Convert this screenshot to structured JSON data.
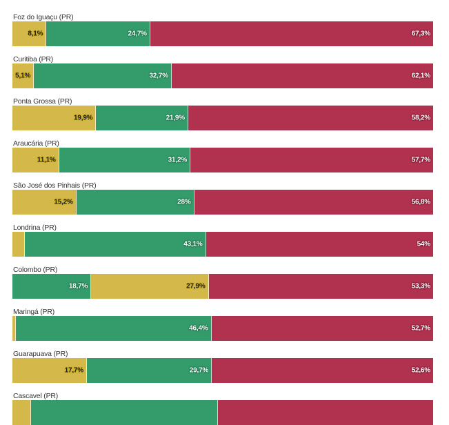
{
  "colors": {
    "yellow": "#d4b94a",
    "green": "#349c6b",
    "red": "#b0324f"
  },
  "chart_data": {
    "type": "bar",
    "orientation": "horizontal",
    "stacked": true,
    "normalized": true,
    "title": "",
    "xlabel": "",
    "ylabel": "",
    "xlim": [
      0,
      100
    ],
    "rows": [
      {
        "name": "Foz do Iguaçu (PR)",
        "segments": [
          {
            "color": "yellow",
            "value": 8.1,
            "label": "8,1%"
          },
          {
            "color": "green",
            "value": 24.7,
            "label": "24,7%"
          },
          {
            "color": "red",
            "value": 67.3,
            "label": "67,3%"
          }
        ]
      },
      {
        "name": "Curitiba (PR)",
        "segments": [
          {
            "color": "yellow",
            "value": 5.1,
            "label": "5,1%"
          },
          {
            "color": "green",
            "value": 32.7,
            "label": "32,7%"
          },
          {
            "color": "red",
            "value": 62.1,
            "label": "62,1%"
          }
        ]
      },
      {
        "name": "Ponta Grossa (PR)",
        "segments": [
          {
            "color": "yellow",
            "value": 19.9,
            "label": "19,9%"
          },
          {
            "color": "green",
            "value": 21.9,
            "label": "21,9%"
          },
          {
            "color": "red",
            "value": 58.2,
            "label": "58,2%"
          }
        ]
      },
      {
        "name": "Araucária (PR)",
        "segments": [
          {
            "color": "yellow",
            "value": 11.1,
            "label": "11,1%"
          },
          {
            "color": "green",
            "value": 31.2,
            "label": "31,2%"
          },
          {
            "color": "red",
            "value": 57.7,
            "label": "57,7%"
          }
        ]
      },
      {
        "name": "São José dos Pinhais (PR)",
        "segments": [
          {
            "color": "yellow",
            "value": 15.2,
            "label": "15,2%"
          },
          {
            "color": "green",
            "value": 28,
            "label": "28%"
          },
          {
            "color": "red",
            "value": 56.8,
            "label": "56,8%"
          }
        ]
      },
      {
        "name": "Londrina (PR)",
        "segments": [
          {
            "color": "yellow",
            "value": 2.9,
            "label": ""
          },
          {
            "color": "green",
            "value": 43.1,
            "label": "43,1%"
          },
          {
            "color": "red",
            "value": 54,
            "label": "54%"
          }
        ]
      },
      {
        "name": "Colombo (PR)",
        "segments": [
          {
            "color": "green",
            "value": 18.7,
            "label": "18,7%"
          },
          {
            "color": "yellow",
            "value": 27.9,
            "label": "27,9%"
          },
          {
            "color": "red",
            "value": 53.3,
            "label": "53,3%"
          }
        ]
      },
      {
        "name": "Maringá (PR)",
        "segments": [
          {
            "color": "yellow",
            "value": 0.9,
            "label": ""
          },
          {
            "color": "green",
            "value": 46.4,
            "label": "46,4%"
          },
          {
            "color": "red",
            "value": 52.7,
            "label": "52,7%"
          }
        ]
      },
      {
        "name": "Guarapuava (PR)",
        "segments": [
          {
            "color": "yellow",
            "value": 17.7,
            "label": "17,7%"
          },
          {
            "color": "green",
            "value": 29.7,
            "label": "29,7%"
          },
          {
            "color": "red",
            "value": 52.6,
            "label": "52,6%"
          }
        ]
      },
      {
        "name": "Cascavel (PR)",
        "segments": [
          {
            "color": "yellow",
            "value": 4.4,
            "label": ""
          },
          {
            "color": "green",
            "value": 44.5,
            "label": ""
          },
          {
            "color": "red",
            "value": 51.1,
            "label": ""
          }
        ]
      }
    ]
  }
}
